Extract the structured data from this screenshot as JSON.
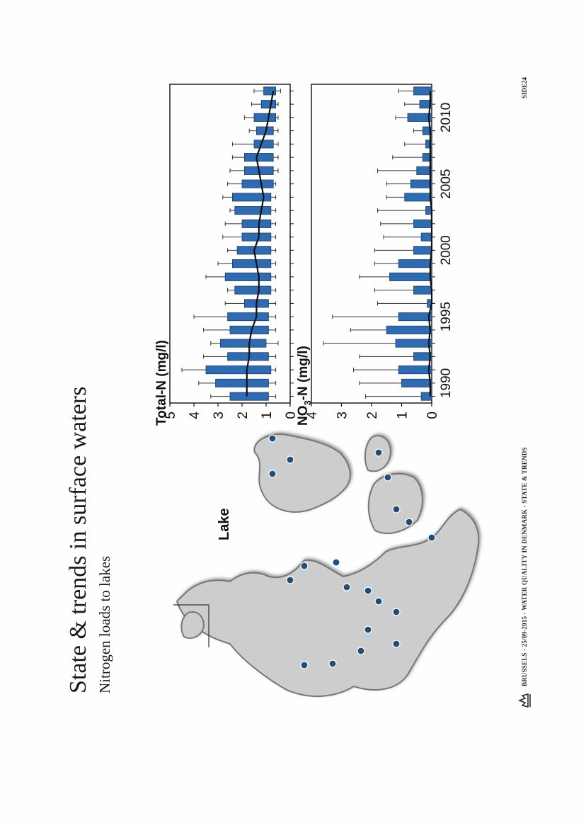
{
  "slide": {
    "title": "State & trends in surface waters",
    "subtitle": "Nitrogen loads to lakes",
    "footer": "BRUSSELS - 25/09-2015 - WATER QUALITY IN DENMARK - STATE & TRENDS",
    "page_number": "SIDE24"
  },
  "map": {
    "legend_label": "Lake",
    "land_color": "#cdcdcd",
    "dot_color": "#1f4e79"
  },
  "chart_data": [
    {
      "type": "bar",
      "title": "Total-N (mg/l)",
      "years": [
        1989,
        1990,
        1991,
        1992,
        1993,
        1994,
        1995,
        1996,
        1997,
        1998,
        1999,
        2000,
        2001,
        2002,
        2003,
        2004,
        2005,
        2006,
        2007,
        2008,
        2009,
        2010,
        2011,
        2012
      ],
      "box_low": [
        0.9,
        0.9,
        0.8,
        0.9,
        1.0,
        0.9,
        0.9,
        0.9,
        0.8,
        0.8,
        0.8,
        0.8,
        0.8,
        0.8,
        0.8,
        0.8,
        0.7,
        0.7,
        0.7,
        0.7,
        0.7,
        0.6,
        0.6,
        0.6
      ],
      "box_high": [
        2.5,
        3.1,
        3.5,
        2.6,
        2.9,
        2.5,
        2.6,
        1.9,
        2.3,
        2.7,
        2.4,
        2.2,
        2.0,
        2.0,
        2.3,
        2.4,
        2.0,
        1.9,
        1.9,
        1.5,
        1.4,
        1.5,
        1.2,
        1.1
      ],
      "whisker_high": [
        3.3,
        3.8,
        4.5,
        3.6,
        3.3,
        3.6,
        4.0,
        2.7,
        2.6,
        3.5,
        3.0,
        2.6,
        2.8,
        2.7,
        2.5,
        2.8,
        2.6,
        2.5,
        2.4,
        2.4,
        1.7,
        1.9,
        1.6,
        1.5
      ],
      "whisker_low": [
        0.6,
        0.6,
        0.6,
        0.6,
        0.5,
        0.6,
        0.6,
        0.6,
        0.6,
        0.6,
        0.6,
        0.6,
        0.6,
        0.6,
        0.6,
        0.6,
        0.6,
        0.5,
        0.5,
        0.5,
        0.5,
        0.5,
        0.5,
        0.4
      ],
      "median": [
        1.8,
        1.8,
        1.8,
        1.7,
        1.7,
        1.6,
        1.4,
        1.4,
        1.3,
        1.3,
        1.4,
        1.5,
        1.3,
        1.3,
        1.2,
        1.1,
        1.2,
        1.3,
        1.4,
        1.2,
        1.0,
        0.9,
        0.8,
        0.7
      ],
      "ylim": [
        0,
        5
      ],
      "yticks": [
        "0",
        "1",
        "2",
        "3",
        "4",
        "5"
      ],
      "box_color": "#2e6bb0"
    },
    {
      "type": "bar",
      "title_prefix": "NO",
      "title_sub": "3",
      "title_suffix": "-N (mg/l)",
      "years": [
        1989,
        1990,
        1991,
        1992,
        1993,
        1994,
        1995,
        1996,
        1997,
        1998,
        1999,
        2000,
        2001,
        2002,
        2003,
        2004,
        2005,
        2006,
        2007,
        2008,
        2009,
        2010,
        2011,
        2012
      ],
      "box_low": [
        0.0,
        0.0,
        0.0,
        0.0,
        0.0,
        0.0,
        0.0,
        0.0,
        0.0,
        0.0,
        0.0,
        0.0,
        0.0,
        0.0,
        0.0,
        0.0,
        0.0,
        0.0,
        0.0,
        0.0,
        0.0,
        0.0,
        0.0,
        0.0
      ],
      "box_high": [
        0.35,
        1.0,
        1.1,
        0.6,
        1.2,
        1.5,
        1.1,
        0.15,
        0.6,
        1.4,
        1.1,
        0.6,
        0.35,
        0.6,
        0.2,
        0.9,
        0.7,
        0.5,
        0.3,
        0.2,
        0.3,
        0.8,
        0.4,
        0.6
      ],
      "whisker_high": [
        2.2,
        2.4,
        2.6,
        2.4,
        3.6,
        2.7,
        3.3,
        1.8,
        1.9,
        2.4,
        1.9,
        1.9,
        1.6,
        1.7,
        1.8,
        1.5,
        1.5,
        1.8,
        1.3,
        0.9,
        0.6,
        1.2,
        0.9,
        1.1
      ],
      "median": [
        0.05,
        0.05,
        0.1,
        0.05,
        0.1,
        0.05,
        0.1,
        0.0,
        0.0,
        0.05,
        0.05,
        0.0,
        0.0,
        0.0,
        0.0,
        0.05,
        0.05,
        0.05,
        0.05,
        0.05,
        0.05,
        0.1,
        0.05,
        0.05
      ],
      "ylim": [
        0,
        4
      ],
      "yticks": [
        "0",
        "1",
        "2",
        "3",
        "4"
      ],
      "xticks": [
        "1990",
        "1995",
        "2000",
        "2005",
        "2010"
      ],
      "box_color": "#2e6bb0"
    }
  ]
}
